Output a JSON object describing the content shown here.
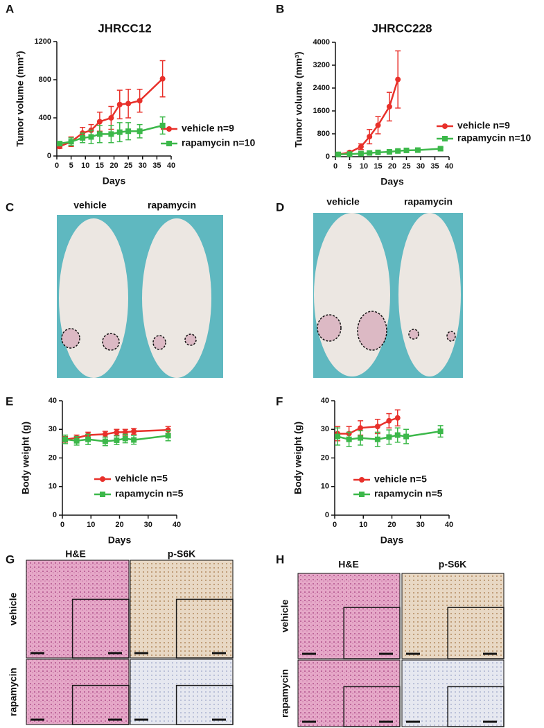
{
  "panel_letters": [
    "A",
    "B",
    "C",
    "D",
    "E",
    "F",
    "G",
    "H"
  ],
  "chart_data": [
    {
      "type": "line",
      "title": "JHRCC12",
      "x_label": "Days",
      "y_label": "Tumor volume (mm³)",
      "xlim": [
        0,
        40
      ],
      "xticks": [
        0,
        5,
        10,
        15,
        20,
        25,
        30,
        35,
        40
      ],
      "ylim": [
        0,
        1200
      ],
      "yticks": [
        0,
        400,
        800,
        1200
      ],
      "series": [
        {
          "name": "vehicle n=9",
          "color": "#e8302a",
          "marker": "circle",
          "x": [
            1,
            5,
            9,
            12,
            15,
            19,
            22,
            25,
            29,
            37
          ],
          "values": [
            100,
            150,
            240,
            270,
            360,
            400,
            540,
            550,
            580,
            810
          ],
          "errors": [
            20,
            50,
            60,
            60,
            100,
            120,
            150,
            150,
            120,
            190
          ]
        },
        {
          "name": "rapamycin n=10",
          "color": "#3cb84a",
          "marker": "square",
          "x": [
            1,
            5,
            9,
            12,
            15,
            19,
            22,
            25,
            29,
            37
          ],
          "values": [
            130,
            150,
            190,
            200,
            230,
            230,
            250,
            260,
            260,
            320
          ],
          "errors": [
            20,
            40,
            50,
            70,
            90,
            90,
            100,
            90,
            70,
            90
          ]
        }
      ]
    },
    {
      "type": "line",
      "title": "JHRCC228",
      "x_label": "Days",
      "y_label": "Tumor volume (mm³)",
      "xlim": [
        0,
        40
      ],
      "xticks": [
        0,
        5,
        10,
        15,
        20,
        25,
        30,
        35,
        40
      ],
      "ylim": [
        0,
        4000
      ],
      "yticks": [
        0,
        800,
        1600,
        2400,
        3200,
        4000
      ],
      "series": [
        {
          "name": "vehicle n=9",
          "color": "#e8302a",
          "marker": "circle",
          "x": [
            1,
            5,
            9,
            12,
            15,
            19,
            22
          ],
          "values": [
            80,
            150,
            350,
            700,
            1100,
            1750,
            2700
          ],
          "errors": [
            20,
            40,
            100,
            250,
            300,
            500,
            1000
          ]
        },
        {
          "name": "rapamycin n=10",
          "color": "#3cb84a",
          "marker": "square",
          "x": [
            1,
            5,
            9,
            12,
            15,
            19,
            22,
            25,
            29,
            37
          ],
          "values": [
            80,
            90,
            110,
            130,
            150,
            170,
            200,
            220,
            230,
            280
          ],
          "errors": [
            20,
            20,
            30,
            30,
            30,
            40,
            40,
            40,
            40,
            50
          ]
        }
      ]
    },
    {
      "type": "line",
      "x_label": "Days",
      "y_label": "Body weight (g)",
      "xlim": [
        0,
        40
      ],
      "xticks": [
        0,
        10,
        20,
        30,
        40
      ],
      "ylim": [
        0,
        40
      ],
      "yticks": [
        0,
        10,
        20,
        30,
        40
      ],
      "series": [
        {
          "name": "vehicle n=5",
          "color": "#e8302a",
          "marker": "circle",
          "x": [
            1,
            5,
            9,
            15,
            19,
            22,
            25,
            37
          ],
          "values": [
            26.5,
            27,
            28,
            28.3,
            29,
            29,
            29.3,
            29.8
          ],
          "errors": [
            1,
            1,
            1,
            1,
            1,
            1,
            1,
            1.2
          ]
        },
        {
          "name": "rapamycin n=5",
          "color": "#3cb84a",
          "marker": "square",
          "x": [
            1,
            5,
            9,
            15,
            19,
            22,
            25,
            37
          ],
          "values": [
            26.5,
            26,
            26.5,
            25.8,
            26.2,
            26.8,
            26.3,
            27.8
          ],
          "errors": [
            1.5,
            1.5,
            1.8,
            1.5,
            1.5,
            1.5,
            1.5,
            1.8
          ]
        }
      ]
    },
    {
      "type": "line",
      "x_label": "Days",
      "y_label": "Body weight (g)",
      "xlim": [
        0,
        40
      ],
      "xticks": [
        0,
        10,
        20,
        30,
        40
      ],
      "ylim": [
        0,
        40
      ],
      "yticks": [
        0,
        10,
        20,
        30,
        40
      ],
      "series": [
        {
          "name": "vehicle n=5",
          "color": "#e8302a",
          "marker": "circle",
          "x": [
            1,
            5,
            9,
            15,
            19,
            22
          ],
          "values": [
            28.5,
            28.5,
            30.5,
            31,
            33,
            34
          ],
          "errors": [
            2.5,
            2.5,
            2.5,
            2.5,
            2.5,
            2.8
          ]
        },
        {
          "name": "rapamycin n=5",
          "color": "#3cb84a",
          "marker": "square",
          "x": [
            1,
            5,
            9,
            15,
            19,
            22,
            25,
            37
          ],
          "values": [
            27.5,
            26.5,
            27,
            26.5,
            27.3,
            28,
            27.5,
            29.3
          ],
          "errors": [
            3,
            2.5,
            2.5,
            2.5,
            2.5,
            2.5,
            2.5,
            2
          ]
        }
      ]
    }
  ],
  "photos": [
    {
      "labels": [
        "vehicle",
        "rapamycin"
      ]
    },
    {
      "labels": [
        "vehicle",
        "rapamycin"
      ]
    }
  ],
  "histology": [
    {
      "columns": [
        "H&E",
        "p-S6K"
      ],
      "rows": [
        "vehicle",
        "rapamycin"
      ]
    },
    {
      "columns": [
        "H&E",
        "p-S6K"
      ],
      "rows": [
        "vehicle",
        "rapamycin"
      ]
    }
  ]
}
